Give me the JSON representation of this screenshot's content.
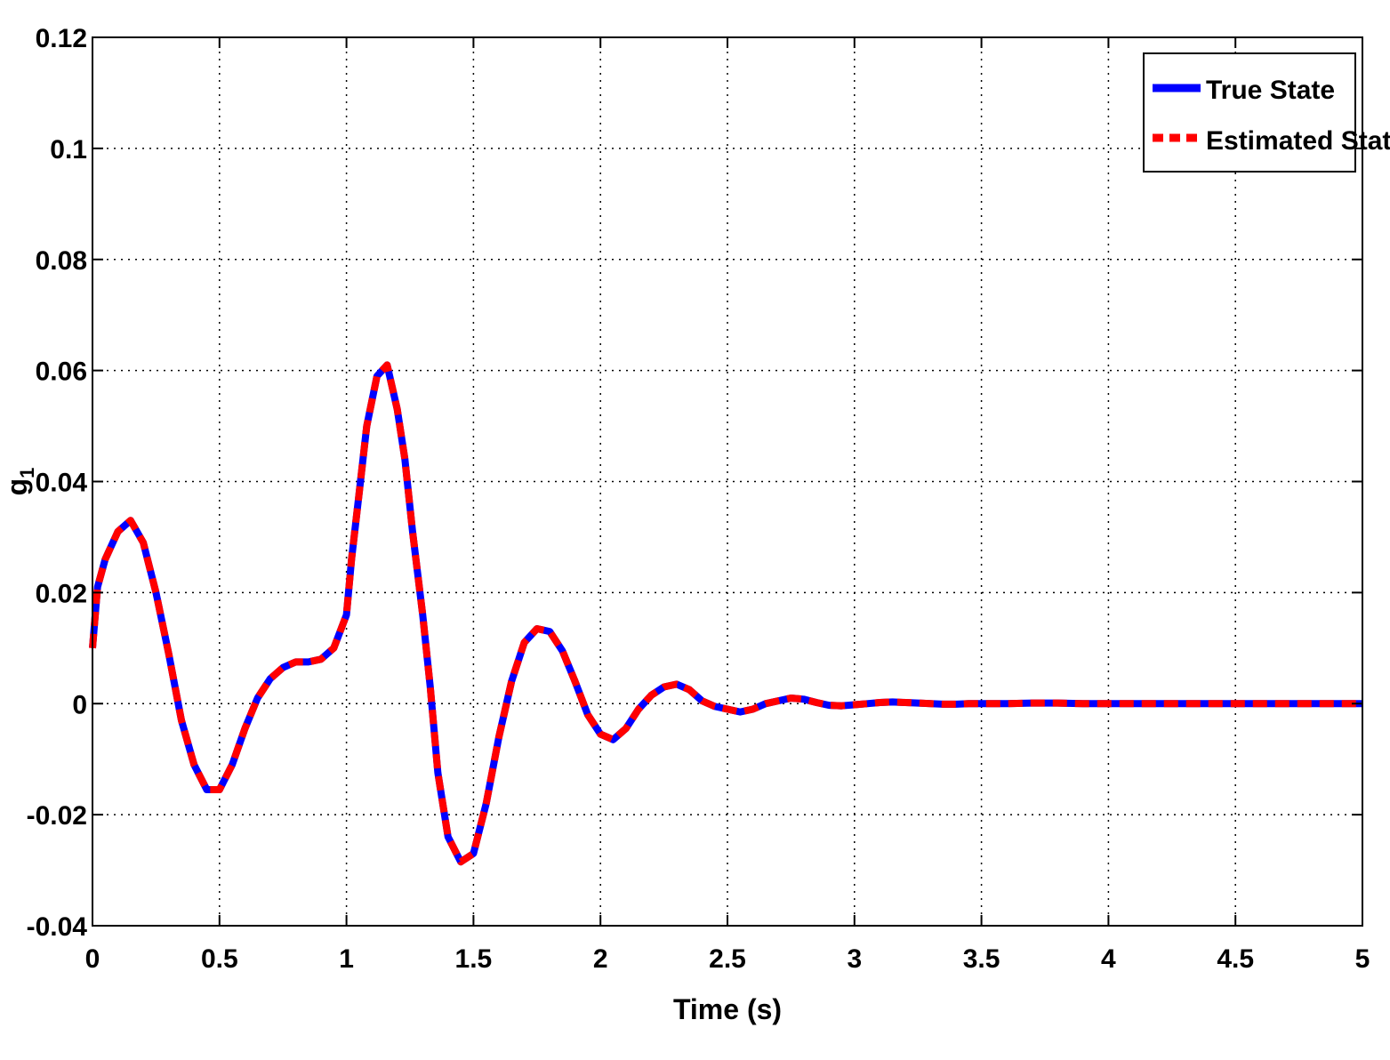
{
  "chart_data": {
    "type": "line",
    "title": "",
    "xlabel": "Time (s)",
    "ylabel": "g",
    "ylabel_subscript": "1",
    "xlim": [
      0,
      5
    ],
    "ylim": [
      -0.04,
      0.12
    ],
    "xticks": [
      0,
      0.5,
      1,
      1.5,
      2,
      2.5,
      3,
      3.5,
      4,
      4.5,
      5
    ],
    "xtick_labels": [
      "0",
      "0.5",
      "1",
      "1.5",
      "2",
      "2.5",
      "3",
      "3.5",
      "4",
      "4.5",
      "5"
    ],
    "yticks": [
      -0.04,
      -0.02,
      0,
      0.02,
      0.04,
      0.06,
      0.08,
      0.1,
      0.12
    ],
    "ytick_labels": [
      "-0.04",
      "-0.02",
      "0",
      "0.02",
      "0.04",
      "0.06",
      "0.08",
      "0.1",
      "0.12"
    ],
    "grid": true,
    "legend_position": "top-right",
    "series": [
      {
        "name": "True State",
        "color": "#0000ff",
        "style": "solid",
        "x": [
          0,
          0.02,
          0.05,
          0.1,
          0.15,
          0.2,
          0.25,
          0.3,
          0.35,
          0.4,
          0.45,
          0.5,
          0.55,
          0.6,
          0.65,
          0.7,
          0.75,
          0.8,
          0.85,
          0.9,
          0.95,
          1.0,
          1.02,
          1.05,
          1.08,
          1.12,
          1.16,
          1.2,
          1.23,
          1.26,
          1.3,
          1.33,
          1.36,
          1.4,
          1.45,
          1.5,
          1.55,
          1.6,
          1.65,
          1.7,
          1.75,
          1.8,
          1.85,
          1.9,
          1.95,
          2.0,
          2.05,
          2.1,
          2.15,
          2.2,
          2.25,
          2.3,
          2.35,
          2.4,
          2.45,
          2.5,
          2.55,
          2.6,
          2.65,
          2.7,
          2.75,
          2.8,
          2.85,
          2.9,
          2.95,
          3.0,
          3.05,
          3.1,
          3.15,
          3.2,
          3.25,
          3.3,
          3.35,
          3.4,
          3.45,
          3.5,
          3.6,
          3.7,
          3.8,
          3.9,
          4.0,
          4.1,
          4.2,
          4.3,
          4.4,
          4.5,
          4.6,
          4.7,
          4.8,
          4.9,
          5.0
        ],
        "y": [
          0.01,
          0.021,
          0.026,
          0.031,
          0.033,
          0.029,
          0.02,
          0.009,
          -0.003,
          -0.011,
          -0.0155,
          -0.0155,
          -0.011,
          -0.0045,
          0.001,
          0.0045,
          0.0065,
          0.0075,
          0.0075,
          0.008,
          0.01,
          0.016,
          0.026,
          0.038,
          0.05,
          0.059,
          0.061,
          0.053,
          0.044,
          0.031,
          0.016,
          0.003,
          -0.0125,
          -0.024,
          -0.0285,
          -0.027,
          -0.018,
          -0.006,
          0.004,
          0.011,
          0.0135,
          0.013,
          0.0095,
          0.004,
          -0.002,
          -0.0055,
          -0.0065,
          -0.0045,
          -0.001,
          0.0015,
          0.003,
          0.0035,
          0.0025,
          0.0005,
          -0.0005,
          -0.001,
          -0.0015,
          -0.001,
          0.0,
          0.0005,
          0.001,
          0.0008,
          0.0002,
          -0.0003,
          -0.0004,
          -0.0002,
          0.0,
          0.0002,
          0.0003,
          0.0002,
          0.0001,
          0.0,
          -0.0001,
          -0.0001,
          0.0,
          0.0,
          0.0,
          0.0001,
          0.0001,
          0.0,
          0.0,
          0.0,
          0.0,
          0.0,
          0.0,
          0.0,
          0.0,
          0.0,
          0.0,
          0.0,
          0.0
        ]
      },
      {
        "name": "Estimated State",
        "color": "#ff0000",
        "style": "dashed",
        "x": [
          0,
          0.02,
          0.05,
          0.1,
          0.15,
          0.2,
          0.25,
          0.3,
          0.35,
          0.4,
          0.45,
          0.5,
          0.55,
          0.6,
          0.65,
          0.7,
          0.75,
          0.8,
          0.85,
          0.9,
          0.95,
          1.0,
          1.02,
          1.05,
          1.08,
          1.12,
          1.16,
          1.2,
          1.23,
          1.26,
          1.3,
          1.33,
          1.36,
          1.4,
          1.45,
          1.5,
          1.55,
          1.6,
          1.65,
          1.7,
          1.75,
          1.8,
          1.85,
          1.9,
          1.95,
          2.0,
          2.05,
          2.1,
          2.15,
          2.2,
          2.25,
          2.3,
          2.35,
          2.4,
          2.45,
          2.5,
          2.55,
          2.6,
          2.65,
          2.7,
          2.75,
          2.8,
          2.85,
          2.9,
          2.95,
          3.0,
          3.05,
          3.1,
          3.15,
          3.2,
          3.25,
          3.3,
          3.35,
          3.4,
          3.45,
          3.5,
          3.6,
          3.7,
          3.8,
          3.9,
          4.0,
          4.1,
          4.2,
          4.3,
          4.4,
          4.5,
          4.6,
          4.7,
          4.8,
          4.9,
          5.0
        ],
        "y": [
          0.01,
          0.021,
          0.026,
          0.031,
          0.033,
          0.029,
          0.02,
          0.009,
          -0.003,
          -0.011,
          -0.0155,
          -0.0155,
          -0.011,
          -0.0045,
          0.001,
          0.0045,
          0.0065,
          0.0075,
          0.0075,
          0.008,
          0.01,
          0.016,
          0.026,
          0.038,
          0.05,
          0.059,
          0.061,
          0.053,
          0.044,
          0.031,
          0.016,
          0.003,
          -0.0125,
          -0.024,
          -0.0285,
          -0.027,
          -0.018,
          -0.006,
          0.004,
          0.011,
          0.0135,
          0.013,
          0.0095,
          0.004,
          -0.002,
          -0.0055,
          -0.0065,
          -0.0045,
          -0.001,
          0.0015,
          0.003,
          0.0035,
          0.0025,
          0.0005,
          -0.0005,
          -0.001,
          -0.0015,
          -0.001,
          0.0,
          0.0005,
          0.001,
          0.0008,
          0.0002,
          -0.0003,
          -0.0004,
          -0.0002,
          0.0,
          0.0002,
          0.0003,
          0.0002,
          0.0001,
          0.0,
          -0.0001,
          -0.0001,
          0.0,
          0.0,
          0.0,
          0.0001,
          0.0001,
          0.0,
          0.0,
          0.0,
          0.0,
          0.0,
          0.0,
          0.0,
          0.0,
          0.0,
          0.0,
          0.0,
          0.0
        ]
      }
    ]
  }
}
